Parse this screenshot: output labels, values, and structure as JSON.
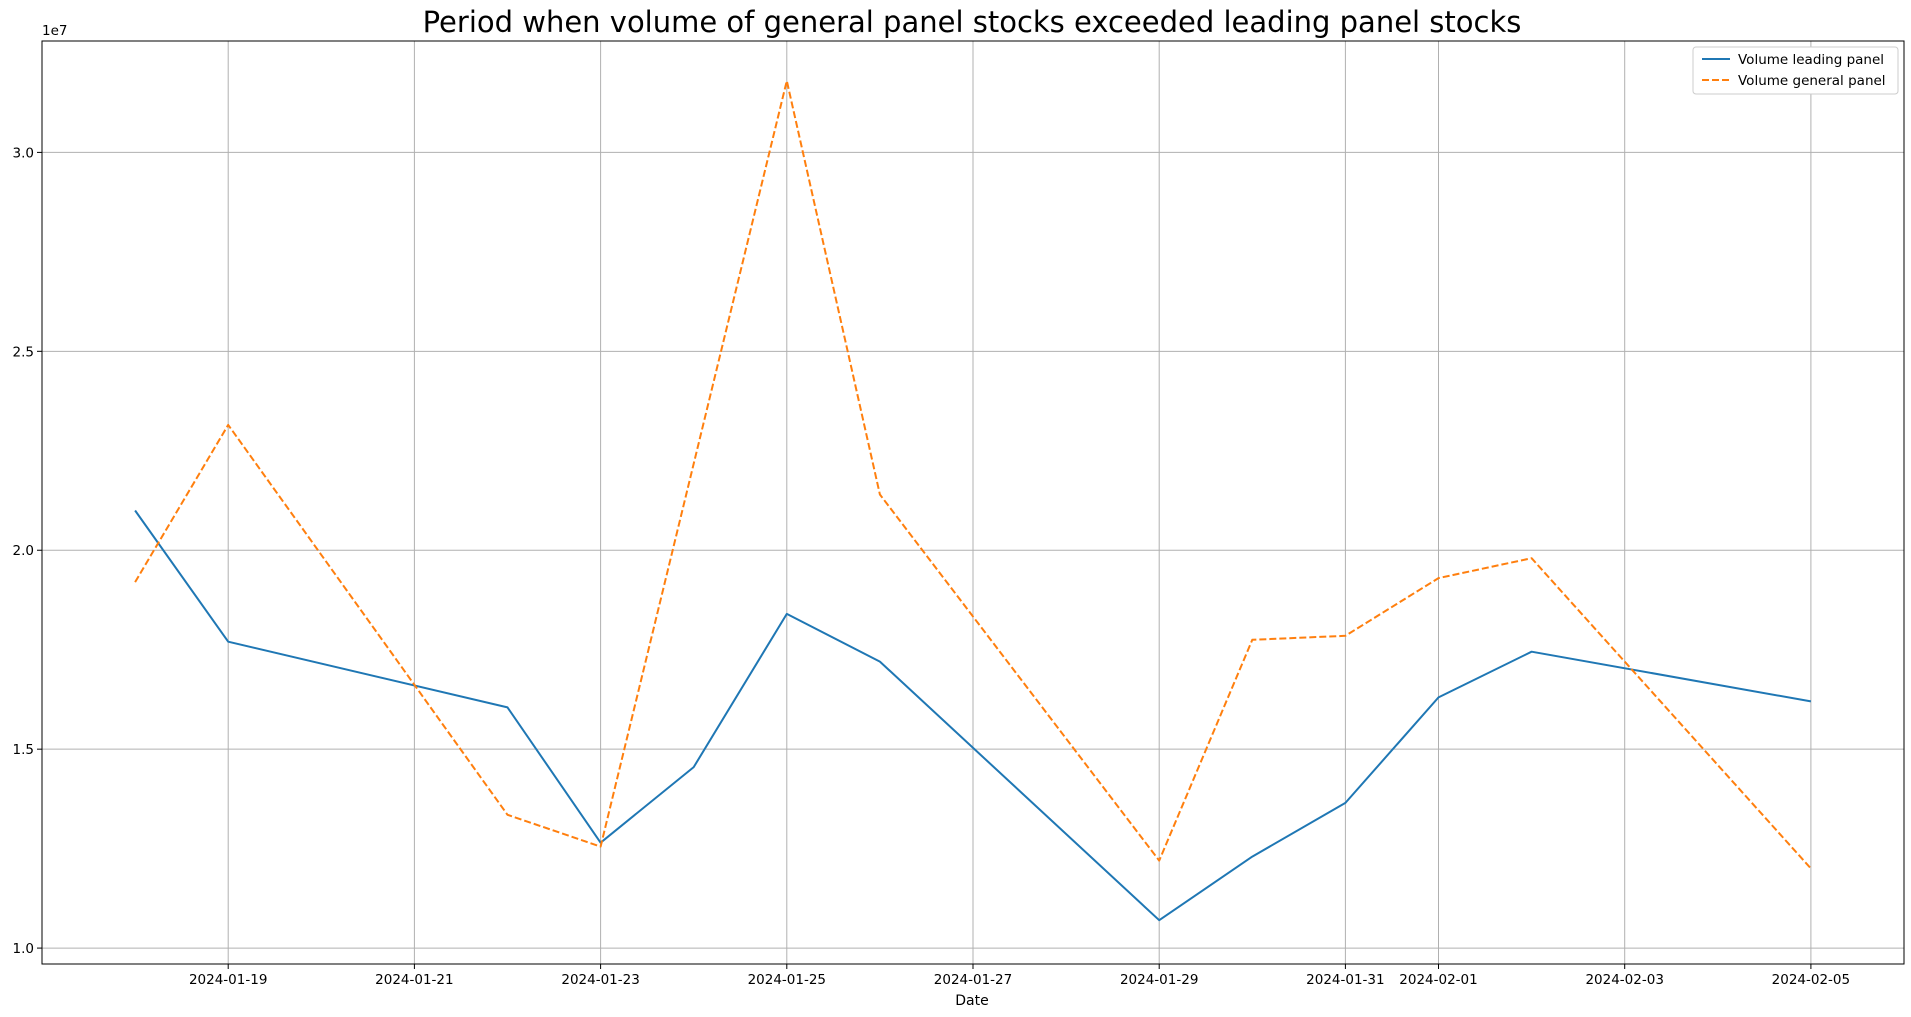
{
  "chart_data": {
    "type": "line",
    "title": "Period when volume of general panel stocks exceeded leading panel stocks",
    "xlabel": "Date",
    "ylabel": "",
    "y_offset_label": "1e7",
    "x_ticks": [
      "2024-01-19",
      "2024-01-21",
      "2024-01-23",
      "2024-01-25",
      "2024-01-27",
      "2024-01-29",
      "2024-01-31",
      "2024-02-01",
      "2024-02-03",
      "2024-02-05"
    ],
    "y_ticks": [
      "1.0",
      "1.5",
      "2.0",
      "2.5",
      "3.0"
    ],
    "y_tick_values": [
      1.0,
      1.5,
      2.0,
      2.5,
      3.0
    ],
    "x_range": [
      "2024-01-17",
      "2024-02-06"
    ],
    "ylim": [
      0.96,
      3.28
    ],
    "grid": true,
    "legend_position": "top-right",
    "x": [
      "2024-01-18",
      "2024-01-19",
      "2024-01-22",
      "2024-01-23",
      "2024-01-24",
      "2024-01-25",
      "2024-01-26",
      "2024-01-29",
      "2024-01-30",
      "2024-01-31",
      "2024-02-01",
      "2024-02-02",
      "2024-02-05"
    ],
    "series": [
      {
        "name": "Volume leading panel",
        "color": "#1f77b4",
        "style": "solid",
        "values": [
          2.1,
          1.77,
          1.605,
          1.265,
          1.455,
          1.84,
          1.72,
          1.07,
          1.23,
          1.365,
          1.63,
          1.745,
          1.62
        ]
      },
      {
        "name": "Volume general panel",
        "color": "#ff7f0e",
        "style": "dashed",
        "values": [
          1.92,
          2.315,
          1.335,
          1.255,
          null,
          3.18,
          2.14,
          1.22,
          1.775,
          1.785,
          1.93,
          1.98,
          1.2
        ]
      }
    ]
  }
}
